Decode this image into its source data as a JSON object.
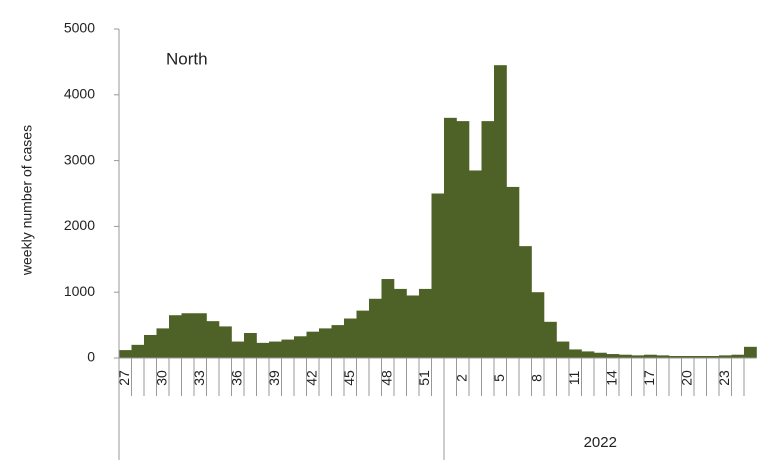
{
  "chart_data": {
    "type": "bar",
    "ylabel": "weekly number of cases",
    "annotation": "North",
    "group_label": "2022",
    "group_start": 26,
    "categories": [
      "27",
      null,
      null,
      "30",
      null,
      null,
      "33",
      null,
      null,
      "36",
      null,
      null,
      "39",
      null,
      null,
      "42",
      null,
      null,
      "45",
      null,
      null,
      "48",
      null,
      null,
      "51",
      null,
      null,
      "2",
      null,
      null,
      "5",
      null,
      null,
      "8",
      null,
      null,
      "11",
      null,
      null,
      "14",
      null,
      null,
      "17",
      null,
      null,
      "20",
      null,
      null,
      "23",
      null,
      null
    ],
    "values": [
      120,
      200,
      350,
      450,
      650,
      680,
      680,
      560,
      480,
      250,
      380,
      230,
      250,
      280,
      330,
      400,
      450,
      500,
      600,
      720,
      900,
      1200,
      1050,
      950,
      1050,
      2500,
      3650,
      3600,
      2850,
      3600,
      4450,
      2600,
      1700,
      1000,
      550,
      250,
      130,
      100,
      80,
      60,
      50,
      40,
      50,
      40,
      30,
      30,
      30,
      30,
      40,
      50,
      170
    ],
    "color": "#4e6127",
    "ylim": [
      0,
      5000
    ],
    "yticks": [
      0,
      1000,
      2000,
      3000,
      4000,
      5000
    ],
    "grid": false
  }
}
